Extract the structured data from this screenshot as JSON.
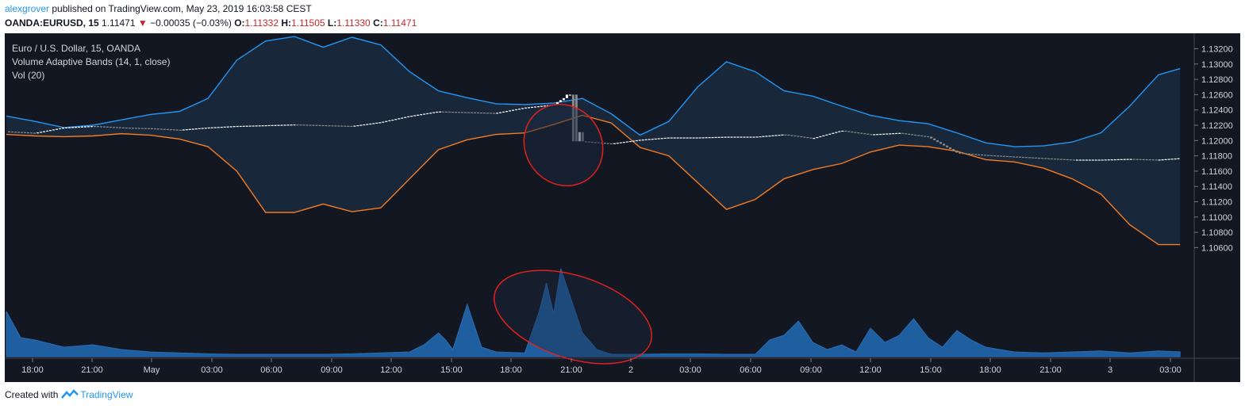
{
  "header": {
    "author": "alexgrover",
    "published": "published on TradingView.com, May 23, 2019 16:03:58 CEST",
    "symbol": "OANDA:EURUSD, 15",
    "last": "1.11471",
    "change": "−0.00035 (−0.03%)",
    "open_label": "O:",
    "open": "1.11332",
    "high_label": "H:",
    "high": "1.11505",
    "low_label": "L:",
    "low": "1.11330",
    "close_label": "C:",
    "close": "1.11471"
  },
  "legend": {
    "title": "Euro / U.S. Dollar, 15, OANDA",
    "indicator": "Volume Adaptive Bands (14, 1, close)",
    "volume": "Vol (20)"
  },
  "footer": {
    "created_with": "Created with",
    "brand": "TradingView"
  },
  "colors": {
    "background": "#131722",
    "upper_band": "#2196f3",
    "lower_band": "#f57c20",
    "band_fill": "#1b2a40",
    "volume": "#1f5fa0",
    "annotation": "#e0201e",
    "candle_up": "#ffffff",
    "candle_down": "#8a8a8a"
  },
  "chart_data": {
    "type": "line",
    "title": "Euro / U.S. Dollar, 15, OANDA",
    "ylim": [
      1.105,
      1.1335
    ],
    "y_ticks": [
      "1.13200",
      "1.13000",
      "1.12800",
      "1.12600",
      "1.12400",
      "1.12200",
      "1.12000",
      "1.11800",
      "1.11600",
      "1.11400",
      "1.11200",
      "1.11000",
      "1.10800",
      "1.10600"
    ],
    "x_ticks": [
      "18:00",
      "21:00",
      "May",
      "03:00",
      "06:00",
      "09:00",
      "12:00",
      "15:00",
      "18:00",
      "21:00",
      "2",
      "03:00",
      "06:00",
      "09:00",
      "12:00",
      "15:00",
      "18:00",
      "21:00",
      "3",
      "03:00"
    ],
    "grid": false,
    "series": [
      {
        "name": "Upper band",
        "points": [
          [
            0,
            1.1232
          ],
          [
            2,
            1.1225
          ],
          [
            4,
            1.1217
          ],
          [
            6,
            1.122
          ],
          [
            8,
            1.1227
          ],
          [
            10,
            1.1234
          ],
          [
            12,
            1.1238
          ],
          [
            14,
            1.1255
          ],
          [
            16,
            1.1305
          ],
          [
            18,
            1.133
          ],
          [
            20,
            1.1336
          ],
          [
            22,
            1.1322
          ],
          [
            24,
            1.1335
          ],
          [
            26,
            1.1325
          ],
          [
            28,
            1.129
          ],
          [
            30,
            1.1265
          ],
          [
            32,
            1.1256
          ],
          [
            34,
            1.1248
          ],
          [
            36,
            1.1247
          ],
          [
            38,
            1.1249
          ],
          [
            40,
            1.1255
          ],
          [
            42,
            1.1235
          ],
          [
            44,
            1.1207
          ],
          [
            46,
            1.1225
          ],
          [
            48,
            1.127
          ],
          [
            50,
            1.1303
          ],
          [
            52,
            1.129
          ],
          [
            54,
            1.1265
          ],
          [
            56,
            1.1258
          ],
          [
            58,
            1.1245
          ],
          [
            60,
            1.1233
          ],
          [
            62,
            1.1226
          ],
          [
            64,
            1.1222
          ],
          [
            66,
            1.121
          ],
          [
            68,
            1.1197
          ],
          [
            70,
            1.1192
          ],
          [
            72,
            1.1193
          ],
          [
            74,
            1.1198
          ],
          [
            76,
            1.121
          ],
          [
            78,
            1.1245
          ],
          [
            80,
            1.1286
          ],
          [
            81.5,
            1.1294
          ]
        ]
      },
      {
        "name": "Lower band",
        "points": [
          [
            0,
            1.1208
          ],
          [
            2,
            1.1206
          ],
          [
            4,
            1.1205
          ],
          [
            6,
            1.1206
          ],
          [
            8,
            1.1209
          ],
          [
            10,
            1.1207
          ],
          [
            12,
            1.1202
          ],
          [
            14,
            1.1192
          ],
          [
            16,
            1.116
          ],
          [
            18,
            1.1106
          ],
          [
            20,
            1.1106
          ],
          [
            22,
            1.1117
          ],
          [
            24,
            1.1107
          ],
          [
            26,
            1.1112
          ],
          [
            28,
            1.115
          ],
          [
            30,
            1.1188
          ],
          [
            32,
            1.1201
          ],
          [
            34,
            1.1208
          ],
          [
            36,
            1.121
          ],
          [
            38,
            1.1221
          ],
          [
            40,
            1.1233
          ],
          [
            42,
            1.1223
          ],
          [
            44,
            1.1191
          ],
          [
            46,
            1.118
          ],
          [
            48,
            1.1145
          ],
          [
            50,
            1.111
          ],
          [
            52,
            1.1123
          ],
          [
            54,
            1.115
          ],
          [
            56,
            1.1162
          ],
          [
            58,
            1.117
          ],
          [
            60,
            1.1185
          ],
          [
            62,
            1.1194
          ],
          [
            64,
            1.1192
          ],
          [
            66,
            1.1186
          ],
          [
            68,
            1.1175
          ],
          [
            70,
            1.1172
          ],
          [
            72,
            1.1164
          ],
          [
            74,
            1.115
          ],
          [
            76,
            1.113
          ],
          [
            78,
            1.109
          ],
          [
            80,
            1.1064
          ],
          [
            81.5,
            1.1064
          ]
        ]
      },
      {
        "name": "Price",
        "points": [
          [
            0,
            1.1212
          ],
          [
            2,
            1.121
          ],
          [
            4,
            1.1217
          ],
          [
            6,
            1.1219
          ],
          [
            8,
            1.1217
          ],
          [
            10,
            1.1216
          ],
          [
            12,
            1.1214
          ],
          [
            14,
            1.1217
          ],
          [
            16,
            1.1219
          ],
          [
            18,
            1.122
          ],
          [
            20,
            1.1221
          ],
          [
            22,
            1.122
          ],
          [
            24,
            1.1219
          ],
          [
            26,
            1.1224
          ],
          [
            28,
            1.1232
          ],
          [
            30,
            1.1238
          ],
          [
            32,
            1.1237
          ],
          [
            34,
            1.1236
          ],
          [
            36,
            1.1243
          ],
          [
            38,
            1.1247
          ],
          [
            39,
            1.1259
          ],
          [
            40,
            1.1199
          ],
          [
            42,
            1.1196
          ],
          [
            44,
            1.1201
          ],
          [
            46,
            1.1204
          ],
          [
            48,
            1.1204
          ],
          [
            50,
            1.1205
          ],
          [
            52,
            1.1205
          ],
          [
            54,
            1.1208
          ],
          [
            56,
            1.1203
          ],
          [
            58,
            1.1213
          ],
          [
            60,
            1.1208
          ],
          [
            62,
            1.121
          ],
          [
            64,
            1.1205
          ],
          [
            66,
            1.1184
          ],
          [
            68,
            1.1181
          ],
          [
            70,
            1.1179
          ],
          [
            72,
            1.1177
          ],
          [
            74,
            1.1175
          ],
          [
            76,
            1.1175
          ],
          [
            78,
            1.1176
          ],
          [
            80,
            1.1175
          ],
          [
            81.5,
            1.1177
          ]
        ]
      },
      {
        "name": "Volume",
        "points": [
          [
            0,
            0.95
          ],
          [
            1,
            0.4
          ],
          [
            2,
            0.35
          ],
          [
            4,
            0.2
          ],
          [
            6,
            0.25
          ],
          [
            8,
            0.15
          ],
          [
            10,
            0.1
          ],
          [
            12,
            0.08
          ],
          [
            14,
            0.06
          ],
          [
            16,
            0.05
          ],
          [
            18,
            0.05
          ],
          [
            20,
            0.05
          ],
          [
            22,
            0.05
          ],
          [
            24,
            0.06
          ],
          [
            26,
            0.08
          ],
          [
            28,
            0.1
          ],
          [
            29,
            0.25
          ],
          [
            30,
            0.5
          ],
          [
            30.5,
            0.35
          ],
          [
            31,
            0.15
          ],
          [
            32,
            1.1
          ],
          [
            33,
            0.2
          ],
          [
            34,
            0.1
          ],
          [
            36,
            0.08
          ],
          [
            37,
            0.95
          ],
          [
            37.5,
            1.55
          ],
          [
            38,
            0.9
          ],
          [
            38.5,
            1.85
          ],
          [
            39,
            1.4
          ],
          [
            40,
            0.5
          ],
          [
            41,
            0.15
          ],
          [
            42,
            0.05
          ],
          [
            44,
            0.05
          ],
          [
            46,
            0.06
          ],
          [
            48,
            0.06
          ],
          [
            50,
            0.05
          ],
          [
            52,
            0.05
          ],
          [
            53,
            0.35
          ],
          [
            54,
            0.45
          ],
          [
            55,
            0.75
          ],
          [
            56,
            0.3
          ],
          [
            57,
            0.15
          ],
          [
            58,
            0.25
          ],
          [
            59,
            0.1
          ],
          [
            60,
            0.6
          ],
          [
            61,
            0.3
          ],
          [
            62,
            0.45
          ],
          [
            63,
            0.8
          ],
          [
            64,
            0.4
          ],
          [
            65,
            0.2
          ],
          [
            66,
            0.55
          ],
          [
            67,
            0.35
          ],
          [
            68,
            0.2
          ],
          [
            70,
            0.1
          ],
          [
            72,
            0.08
          ],
          [
            74,
            0.1
          ],
          [
            76,
            0.12
          ],
          [
            78,
            0.08
          ],
          [
            80,
            0.12
          ],
          [
            81.5,
            0.1
          ]
        ]
      }
    ],
    "annotations": [
      "ellipse around price spike",
      "ellipse around volume spike"
    ]
  }
}
